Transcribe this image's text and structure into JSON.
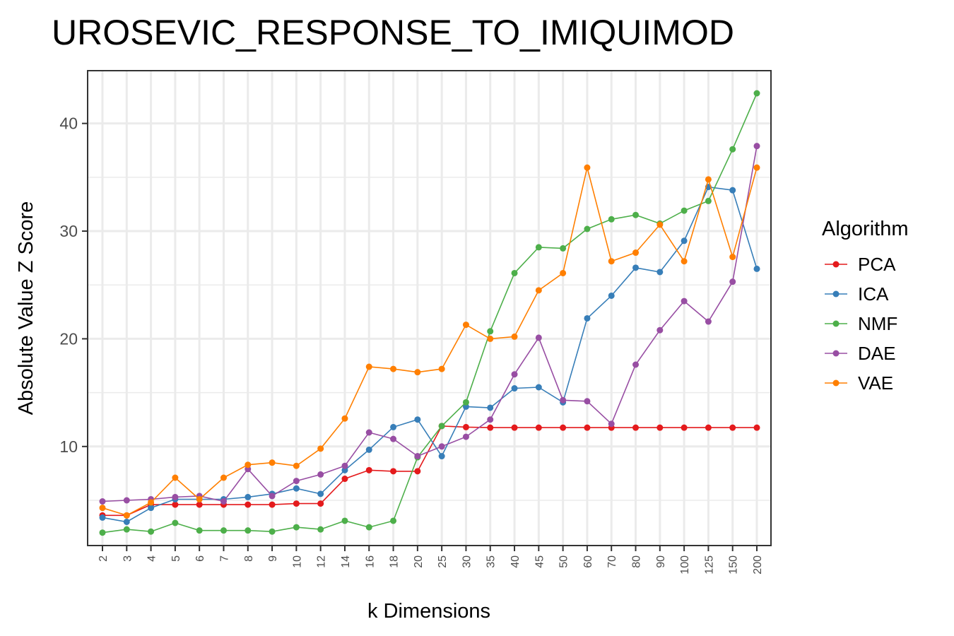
{
  "chart_data": {
    "type": "line",
    "title": "UROSEVIC_RESPONSE_TO_IMIQUIMOD",
    "xlabel": "k Dimensions",
    "ylabel": "Absolute Value Z Score",
    "categories": [
      "2",
      "3",
      "4",
      "5",
      "6",
      "7",
      "8",
      "9",
      "10",
      "12",
      "14",
      "16",
      "18",
      "20",
      "25",
      "30",
      "35",
      "40",
      "45",
      "50",
      "60",
      "70",
      "80",
      "90",
      "100",
      "125",
      "150",
      "200"
    ],
    "yticks": [
      10,
      20,
      30,
      40
    ],
    "ylim": [
      0.8,
      44.9
    ],
    "grid": true,
    "legend": {
      "title": "Algorithm",
      "placement": "right"
    },
    "series": [
      {
        "name": "PCA",
        "color": "#E41A1C",
        "values": [
          3.6,
          3.6,
          4.6,
          4.6,
          4.6,
          4.6,
          4.6,
          4.6,
          4.7,
          4.7,
          7.0,
          7.8,
          7.7,
          7.7,
          11.9,
          11.8,
          11.75,
          11.75,
          11.75,
          11.75,
          11.75,
          11.75,
          11.75,
          11.75,
          11.75,
          11.75,
          11.75,
          11.75
        ]
      },
      {
        "name": "ICA",
        "color": "#377EB8",
        "values": [
          3.4,
          3.0,
          4.3,
          5.1,
          5.1,
          5.1,
          5.3,
          5.6,
          6.1,
          5.6,
          7.8,
          9.7,
          11.8,
          12.5,
          9.1,
          13.7,
          13.6,
          15.4,
          15.5,
          14.1,
          21.9,
          24.0,
          26.6,
          26.2,
          29.1,
          34.1,
          33.8,
          26.5
        ]
      },
      {
        "name": "NMF",
        "color": "#4DAF4A",
        "values": [
          2.0,
          2.3,
          2.1,
          2.9,
          2.2,
          2.2,
          2.2,
          2.1,
          2.5,
          2.3,
          3.1,
          2.5,
          3.1,
          9.0,
          11.9,
          14.1,
          20.7,
          26.1,
          28.5,
          28.4,
          30.2,
          31.1,
          31.5,
          30.7,
          31.9,
          32.8,
          37.6,
          42.8
        ]
      },
      {
        "name": "DAE",
        "color": "#984EA3",
        "values": [
          4.9,
          5.0,
          5.1,
          5.3,
          5.4,
          4.9,
          7.9,
          5.4,
          6.8,
          7.4,
          8.2,
          11.3,
          10.7,
          9.1,
          10.0,
          10.9,
          12.5,
          16.7,
          20.1,
          14.3,
          14.2,
          12.1,
          17.6,
          20.8,
          23.5,
          21.6,
          25.3,
          37.9
        ]
      },
      {
        "name": "VAE",
        "color": "#FF7F00",
        "values": [
          4.3,
          3.6,
          4.8,
          7.1,
          5.1,
          7.1,
          8.3,
          8.5,
          8.2,
          9.8,
          12.6,
          17.4,
          17.2,
          16.9,
          17.2,
          21.3,
          20.0,
          20.2,
          24.5,
          26.1,
          35.9,
          27.2,
          28.0,
          30.6,
          27.2,
          34.8,
          27.6,
          35.9
        ]
      }
    ]
  }
}
